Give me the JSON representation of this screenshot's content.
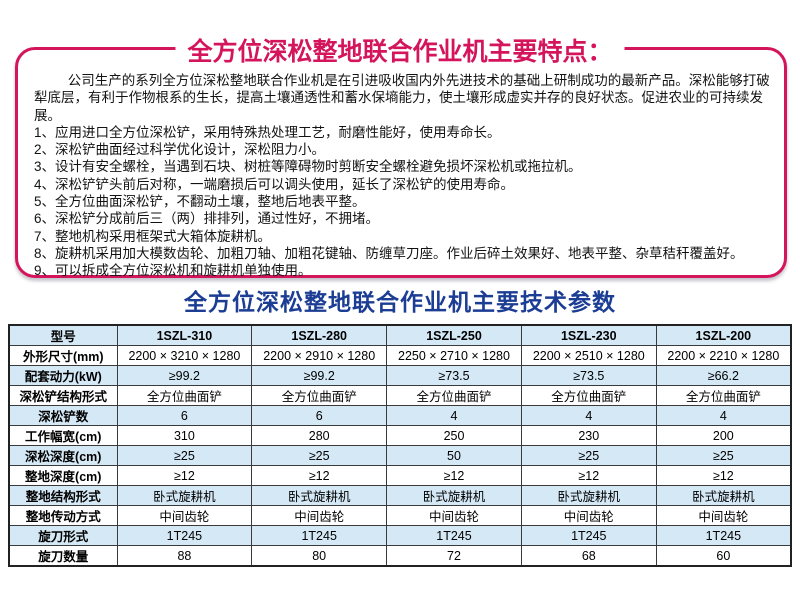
{
  "features": {
    "title": "全方位深松整地联合作业机主要特点：",
    "intro": "公司生产的系列全方位深松整地联合作业机是在引进吸收国内外先进技术的基础上研制成功的最新产品。深松能够打破犁底层，有利于作物根系的生长，提高土壤通透性和蓄水保墒能力，使土壤形成虚实并存的良好状态。促进农业的可持续发展。",
    "items": [
      "1、应用进口全方位深松铲，采用特殊热处理工艺，耐磨性能好，使用寿命长。",
      "2、深松铲曲面经过科学优化设计，深松阻力小。",
      "3、设计有安全螺栓，当遇到石块、树桩等障碍物时剪断安全螺栓避免损坏深松机或拖拉机。",
      "4、深松铲铲头前后对称，一端磨损后可以调头使用，延长了深松铲的使用寿命。",
      "5、全方位曲面深松铲，不翻动土壤，整地后地表平整。",
      "6、深松铲分成前后三（两）排排列，通过性好，不拥堵。",
      "7、整地机构采用框架式大箱体旋耕机。",
      "8、旋耕机采用加大模数齿轮、加粗刀轴、加粗花键轴、防缠草刀座。作业后碎土效果好、地表平整、杂草秸秆覆盖好。",
      "9、可以拆成全方位深松机和旋耕机单独使用。"
    ]
  },
  "specs": {
    "title": "全方位深松整地联合作业机主要技术参数",
    "table": {
      "header_label": "型号",
      "models": [
        "1SZL-310",
        "1SZL-280",
        "1SZL-250",
        "1SZL-230",
        "1SZL-200"
      ],
      "rows": [
        {
          "label": "外形尺寸(mm)",
          "values": [
            "2200 × 3210 × 1280",
            "2200 × 2910 × 1280",
            "2250 × 2710 × 1280",
            "2200 × 2510 × 1280",
            "2200 × 2210 × 1280"
          ]
        },
        {
          "label": "配套动力(kW)",
          "values": [
            "≥99.2",
            "≥99.2",
            "≥73.5",
            "≥73.5",
            "≥66.2"
          ]
        },
        {
          "label": "深松铲结构形式",
          "values": [
            "全方位曲面铲",
            "全方位曲面铲",
            "全方位曲面铲",
            "全方位曲面铲",
            "全方位曲面铲"
          ]
        },
        {
          "label": "深松铲数",
          "values": [
            "6",
            "6",
            "4",
            "4",
            "4"
          ]
        },
        {
          "label": "工作幅宽(cm)",
          "values": [
            "310",
            "280",
            "250",
            "230",
            "200"
          ]
        },
        {
          "label": "深松深度(cm)",
          "values": [
            "≥25",
            "≥25",
            "50",
            "≥25",
            "≥25"
          ]
        },
        {
          "label": "整地深度(cm)",
          "values": [
            "≥12",
            "≥12",
            "≥12",
            "≥12",
            "≥12"
          ]
        },
        {
          "label": "整地结构形式",
          "values": [
            "卧式旋耕机",
            "卧式旋耕机",
            "卧式旋耕机",
            "卧式旋耕机",
            "卧式旋耕机"
          ]
        },
        {
          "label": "整地传动方式",
          "values": [
            "中间齿轮",
            "中间齿轮",
            "中间齿轮",
            "中间齿轮",
            "中间齿轮"
          ]
        },
        {
          "label": "旋刀形式",
          "values": [
            "1T245",
            "1T245",
            "1T245",
            "1T245",
            "1T245"
          ]
        },
        {
          "label": "旋刀数量",
          "values": [
            "88",
            "80",
            "72",
            "68",
            "60"
          ]
        }
      ]
    }
  },
  "colors": {
    "accent_pink": "#d4155c",
    "accent_blue": "#1c3d94",
    "row_highlight": "#d5e8f6",
    "table_border": "#3a3a3a"
  }
}
